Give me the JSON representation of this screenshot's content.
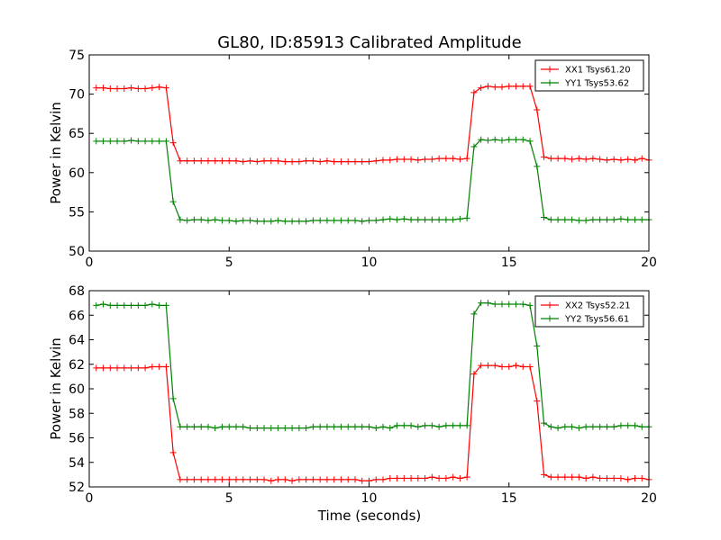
{
  "figure": {
    "title": "GL80, ID:85913 Calibrated Amplitude",
    "xlabel": "Time (seconds)"
  },
  "chart_data": [
    {
      "type": "line",
      "ylabel": "Power in Kelvin",
      "xlim": [
        0,
        20
      ],
      "ylim": [
        50,
        75
      ],
      "xticks": [
        0,
        5,
        10,
        15,
        20
      ],
      "yticks": [
        50,
        55,
        60,
        65,
        70,
        75
      ],
      "grid": false,
      "legend": "top-right",
      "series": [
        {
          "name": "XX1 Tsys61.20",
          "color": "#ff0000",
          "x": [
            0.25,
            0.5,
            0.75,
            1.0,
            1.25,
            1.5,
            1.75,
            2.0,
            2.25,
            2.5,
            2.75,
            3.0,
            3.25,
            3.5,
            3.75,
            4.0,
            4.25,
            4.5,
            4.75,
            5.0,
            5.25,
            5.5,
            5.75,
            6.0,
            6.25,
            6.5,
            6.75,
            7.0,
            7.25,
            7.5,
            7.75,
            8.0,
            8.25,
            8.5,
            8.75,
            9.0,
            9.25,
            9.5,
            9.75,
            10.0,
            10.25,
            10.5,
            10.75,
            11.0,
            11.25,
            11.5,
            11.75,
            12.0,
            12.25,
            12.5,
            12.75,
            13.0,
            13.25,
            13.5,
            13.75,
            14.0,
            14.25,
            14.5,
            14.75,
            15.0,
            15.25,
            15.5,
            15.75,
            16.0,
            16.25,
            16.5,
            16.75,
            17.0,
            17.25,
            17.5,
            17.75,
            18.0,
            18.25,
            18.5,
            18.75,
            19.0,
            19.25,
            19.5,
            19.75,
            20.0
          ],
          "y": [
            70.8,
            70.8,
            70.7,
            70.7,
            70.7,
            70.8,
            70.7,
            70.7,
            70.8,
            70.9,
            70.8,
            63.8,
            61.5,
            61.5,
            61.5,
            61.5,
            61.5,
            61.5,
            61.5,
            61.5,
            61.5,
            61.4,
            61.5,
            61.4,
            61.5,
            61.5,
            61.5,
            61.4,
            61.4,
            61.4,
            61.5,
            61.5,
            61.4,
            61.5,
            61.4,
            61.4,
            61.4,
            61.4,
            61.4,
            61.4,
            61.5,
            61.6,
            61.6,
            61.7,
            61.7,
            61.7,
            61.6,
            61.7,
            61.7,
            61.8,
            61.8,
            61.8,
            61.7,
            61.8,
            70.2,
            70.8,
            71.0,
            70.9,
            70.9,
            71.0,
            71.0,
            71.0,
            71.0,
            68.0,
            62.0,
            61.8,
            61.8,
            61.8,
            61.7,
            61.8,
            61.7,
            61.8,
            61.7,
            61.6,
            61.7,
            61.6,
            61.7,
            61.6,
            61.8,
            61.6
          ]
        },
        {
          "name": "YY1 Tsys53.62",
          "color": "#008000",
          "x": [
            0.25,
            0.5,
            0.75,
            1.0,
            1.25,
            1.5,
            1.75,
            2.0,
            2.25,
            2.5,
            2.75,
            3.0,
            3.25,
            3.5,
            3.75,
            4.0,
            4.25,
            4.5,
            4.75,
            5.0,
            5.25,
            5.5,
            5.75,
            6.0,
            6.25,
            6.5,
            6.75,
            7.0,
            7.25,
            7.5,
            7.75,
            8.0,
            8.25,
            8.5,
            8.75,
            9.0,
            9.25,
            9.5,
            9.75,
            10.0,
            10.25,
            10.5,
            10.75,
            11.0,
            11.25,
            11.5,
            11.75,
            12.0,
            12.25,
            12.5,
            12.75,
            13.0,
            13.25,
            13.5,
            13.75,
            14.0,
            14.25,
            14.5,
            14.75,
            15.0,
            15.25,
            15.5,
            15.75,
            16.0,
            16.25,
            16.5,
            16.75,
            17.0,
            17.25,
            17.5,
            17.75,
            18.0,
            18.25,
            18.5,
            18.75,
            19.0,
            19.25,
            19.5,
            19.75,
            20.0
          ],
          "y": [
            64.0,
            64.0,
            64.0,
            64.0,
            64.0,
            64.1,
            64.0,
            64.0,
            64.0,
            64.0,
            64.0,
            56.3,
            54.0,
            53.9,
            54.0,
            54.0,
            53.9,
            54.0,
            53.9,
            53.9,
            53.8,
            53.9,
            53.9,
            53.8,
            53.8,
            53.8,
            53.9,
            53.8,
            53.8,
            53.8,
            53.8,
            53.9,
            53.9,
            53.9,
            53.9,
            53.9,
            53.9,
            53.9,
            53.8,
            53.9,
            53.9,
            54.0,
            54.1,
            54.0,
            54.1,
            54.0,
            54.0,
            54.0,
            54.0,
            54.0,
            54.0,
            54.0,
            54.1,
            54.2,
            63.3,
            64.2,
            64.1,
            64.2,
            64.1,
            64.2,
            64.2,
            64.2,
            64.0,
            60.8,
            54.3,
            54.0,
            54.0,
            54.0,
            54.0,
            53.9,
            53.9,
            54.0,
            54.0,
            54.0,
            54.0,
            54.1,
            54.0,
            54.0,
            54.0,
            54.0
          ]
        }
      ]
    },
    {
      "type": "line",
      "ylabel": "Power in Kelvin",
      "xlabel": "Time (seconds)",
      "xlim": [
        0,
        20
      ],
      "ylim": [
        52,
        68
      ],
      "xticks": [
        0,
        5,
        10,
        15,
        20
      ],
      "yticks": [
        52,
        54,
        56,
        58,
        60,
        62,
        64,
        66,
        68
      ],
      "grid": false,
      "legend": "top-right",
      "series": [
        {
          "name": "XX2 Tsys52.21",
          "color": "#ff0000",
          "x": [
            0.25,
            0.5,
            0.75,
            1.0,
            1.25,
            1.5,
            1.75,
            2.0,
            2.25,
            2.5,
            2.75,
            3.0,
            3.25,
            3.5,
            3.75,
            4.0,
            4.25,
            4.5,
            4.75,
            5.0,
            5.25,
            5.5,
            5.75,
            6.0,
            6.25,
            6.5,
            6.75,
            7.0,
            7.25,
            7.5,
            7.75,
            8.0,
            8.25,
            8.5,
            8.75,
            9.0,
            9.25,
            9.5,
            9.75,
            10.0,
            10.25,
            10.5,
            10.75,
            11.0,
            11.25,
            11.5,
            11.75,
            12.0,
            12.25,
            12.5,
            12.75,
            13.0,
            13.25,
            13.5,
            13.75,
            14.0,
            14.25,
            14.5,
            14.75,
            15.0,
            15.25,
            15.5,
            15.75,
            16.0,
            16.25,
            16.5,
            16.75,
            17.0,
            17.25,
            17.5,
            17.75,
            18.0,
            18.25,
            18.5,
            18.75,
            19.0,
            19.25,
            19.5,
            19.75,
            20.0
          ],
          "y": [
            61.7,
            61.7,
            61.7,
            61.7,
            61.7,
            61.7,
            61.7,
            61.7,
            61.8,
            61.8,
            61.8,
            54.8,
            52.6,
            52.6,
            52.6,
            52.6,
            52.6,
            52.6,
            52.6,
            52.6,
            52.6,
            52.6,
            52.6,
            52.6,
            52.6,
            52.5,
            52.6,
            52.6,
            52.5,
            52.6,
            52.6,
            52.6,
            52.6,
            52.6,
            52.6,
            52.6,
            52.6,
            52.6,
            52.5,
            52.5,
            52.6,
            52.6,
            52.7,
            52.7,
            52.7,
            52.7,
            52.7,
            52.7,
            52.8,
            52.7,
            52.7,
            52.8,
            52.7,
            52.8,
            61.2,
            61.9,
            61.9,
            61.9,
            61.8,
            61.8,
            61.9,
            61.8,
            61.8,
            59.0,
            53.0,
            52.8,
            52.8,
            52.8,
            52.8,
            52.8,
            52.7,
            52.8,
            52.7,
            52.7,
            52.7,
            52.7,
            52.6,
            52.7,
            52.7,
            52.6
          ]
        },
        {
          "name": "YY2 Tsys56.61",
          "color": "#008000",
          "x": [
            0.25,
            0.5,
            0.75,
            1.0,
            1.25,
            1.5,
            1.75,
            2.0,
            2.25,
            2.5,
            2.75,
            3.0,
            3.25,
            3.5,
            3.75,
            4.0,
            4.25,
            4.5,
            4.75,
            5.0,
            5.25,
            5.5,
            5.75,
            6.0,
            6.25,
            6.5,
            6.75,
            7.0,
            7.25,
            7.5,
            7.75,
            8.0,
            8.25,
            8.5,
            8.75,
            9.0,
            9.25,
            9.5,
            9.75,
            10.0,
            10.25,
            10.5,
            10.75,
            11.0,
            11.25,
            11.5,
            11.75,
            12.0,
            12.25,
            12.5,
            12.75,
            13.0,
            13.25,
            13.5,
            13.75,
            14.0,
            14.25,
            14.5,
            14.75,
            15.0,
            15.25,
            15.5,
            15.75,
            16.0,
            16.25,
            16.5,
            16.75,
            17.0,
            17.25,
            17.5,
            17.75,
            18.0,
            18.25,
            18.5,
            18.75,
            19.0,
            19.25,
            19.5,
            19.75,
            20.0
          ],
          "y": [
            66.8,
            66.9,
            66.8,
            66.8,
            66.8,
            66.8,
            66.8,
            66.8,
            66.9,
            66.8,
            66.8,
            59.2,
            56.9,
            56.9,
            56.9,
            56.9,
            56.9,
            56.8,
            56.9,
            56.9,
            56.9,
            56.9,
            56.8,
            56.8,
            56.8,
            56.8,
            56.8,
            56.8,
            56.8,
            56.8,
            56.8,
            56.9,
            56.9,
            56.9,
            56.9,
            56.9,
            56.9,
            56.9,
            56.9,
            56.9,
            56.8,
            56.9,
            56.8,
            57.0,
            57.0,
            57.0,
            56.9,
            57.0,
            57.0,
            56.9,
            57.0,
            57.0,
            57.0,
            57.0,
            66.1,
            67.0,
            67.0,
            66.9,
            66.9,
            66.9,
            66.9,
            66.9,
            66.8,
            63.5,
            57.2,
            56.9,
            56.8,
            56.9,
            56.9,
            56.8,
            56.9,
            56.9,
            56.9,
            56.9,
            56.9,
            57.0,
            57.0,
            57.0,
            56.9,
            56.9
          ]
        }
      ]
    }
  ]
}
